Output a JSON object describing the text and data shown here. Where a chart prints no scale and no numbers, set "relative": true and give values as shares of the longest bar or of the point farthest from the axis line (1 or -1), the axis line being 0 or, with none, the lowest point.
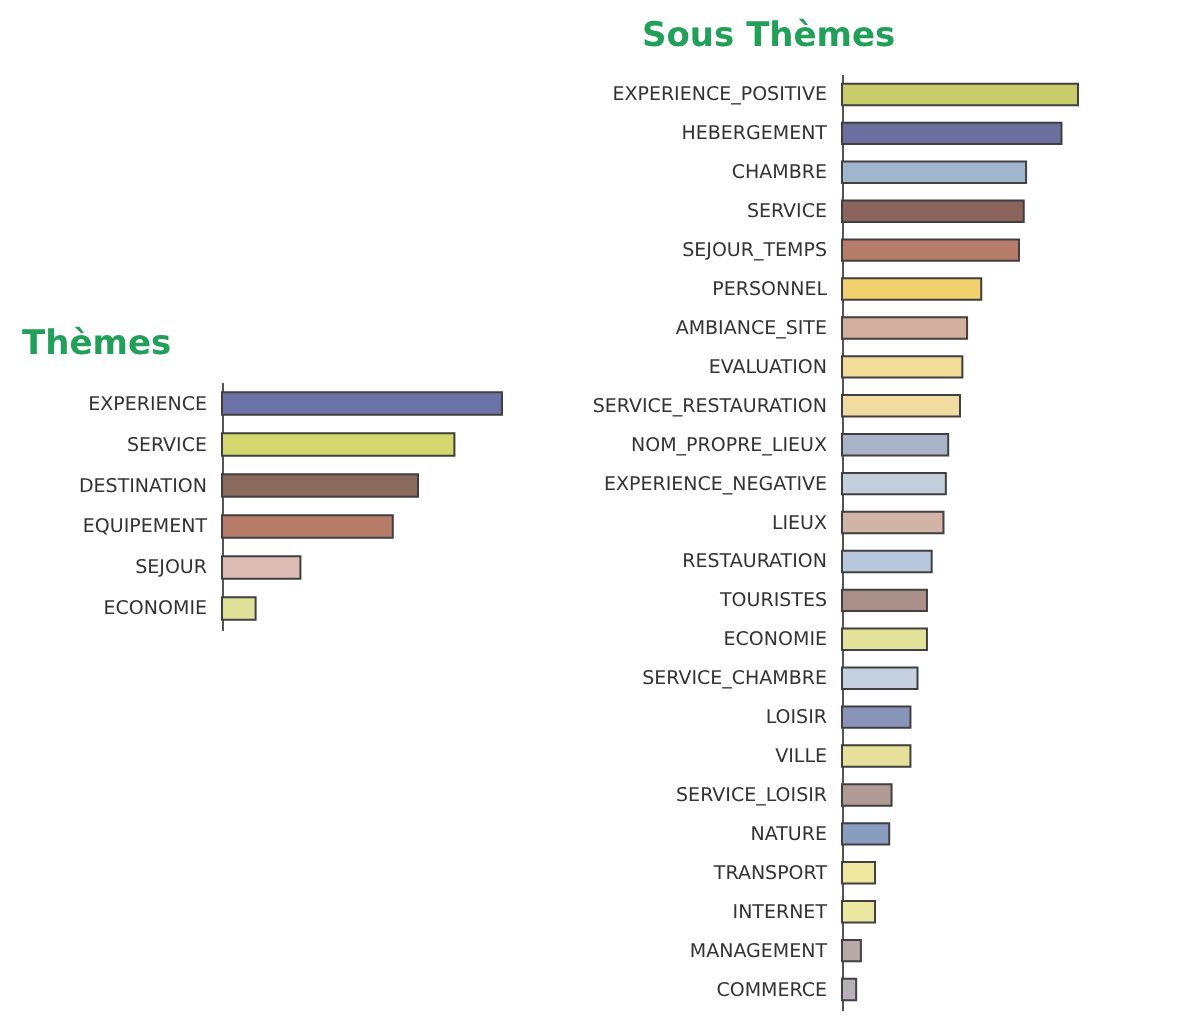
{
  "chart_data": [
    {
      "type": "bar",
      "orientation": "horizontal",
      "relative": true,
      "title": "Thèmes",
      "categories": [
        "EXPERIENCE",
        "SERVICE",
        "DESTINATION",
        "EQUIPEMENT",
        "SEJOUR",
        "ECONOMIE"
      ],
      "values": [
        1,
        0.83,
        0.7,
        0.61,
        0.28,
        0.12
      ],
      "colors": [
        "#6b73a6",
        "#d4d86e",
        "#8b6a5e",
        "#b87c6a",
        "#dcbcb4",
        "#dfe39a"
      ]
    },
    {
      "type": "bar",
      "orientation": "horizontal",
      "relative": true,
      "title": "Sous Thèmes",
      "categories": [
        "EXPERIENCE_POSITIVE",
        "HEBERGEMENT",
        "CHAMBRE",
        "SERVICE",
        "SEJOUR_TEMPS",
        "PERSONNEL",
        "AMBIANCE_SITE",
        "EVALUATION",
        "SERVICE_RESTAURATION",
        "NOM_PROPRE_LIEUX",
        "EXPERIENCE_NEGATIVE",
        "LIEUX",
        "RESTAURATION",
        "TOURISTES",
        "ECONOMIE",
        "SERVICE_CHAMBRE",
        "LOISIR",
        "VILLE",
        "SERVICE_LOISIR",
        "NATURE",
        "TRANSPORT",
        "INTERNET",
        "MANAGEMENT",
        "COMMERCE"
      ],
      "values": [
        1,
        0.93,
        0.78,
        0.77,
        0.75,
        0.59,
        0.53,
        0.51,
        0.5,
        0.45,
        0.44,
        0.43,
        0.38,
        0.36,
        0.36,
        0.32,
        0.29,
        0.29,
        0.21,
        0.2,
        0.14,
        0.14,
        0.08,
        0.06
      ],
      "colors": [
        "#c9cc6a",
        "#6a6f9e",
        "#9fb6cc",
        "#8b645c",
        "#b87c6a",
        "#efcf6e",
        "#d4b0a0",
        "#f2dc98",
        "#f0dba0",
        "#aab4c8",
        "#c4cfdc",
        "#d2b4a6",
        "#b8c8dc",
        "#a89088",
        "#e2e29a",
        "#c4d0e0",
        "#8894b8",
        "#e6e09a",
        "#b09a94",
        "#8a9cc0",
        "#efe7a0",
        "#ebe6a0",
        "#b8a8a8",
        "#b8b0b8"
      ]
    }
  ]
}
